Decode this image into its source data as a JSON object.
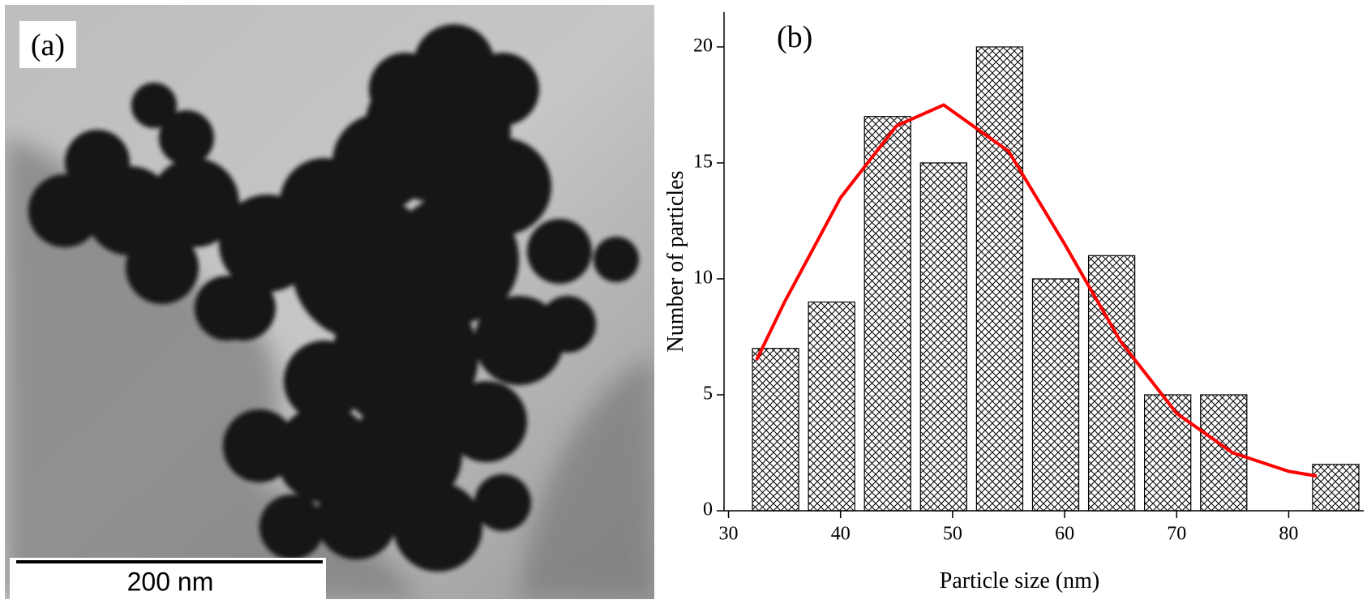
{
  "image_panel": {
    "label": "(a)",
    "scale_bar": "200 nm"
  },
  "chart_data": {
    "type": "histogram",
    "annotation": "(b)",
    "x_label": "Particle size (nm)",
    "y_label": "Number of particles",
    "bins": [
      31.7,
      36.7,
      41.7,
      46.7,
      51.7,
      56.7,
      61.7,
      66.7,
      71.7,
      76.7,
      81.7,
      86.7
    ],
    "counts": [
      7,
      9,
      17,
      15,
      20,
      10,
      11,
      5,
      5,
      0,
      2
    ],
    "fit": {
      "color": "#ff0000",
      "x": [
        32.5,
        35,
        40,
        45,
        49.2,
        55,
        60,
        65,
        70,
        75,
        80,
        82.5
      ],
      "y": [
        6.5,
        9,
        13.5,
        16.6,
        17.5,
        15.5,
        11.5,
        7.3,
        4.2,
        2.5,
        1.7,
        1.5
      ]
    },
    "xlim": [
      29.6,
      86.7
    ],
    "ylim": [
      0,
      21.5
    ],
    "xticks": [
      30,
      40,
      50,
      60,
      70,
      80
    ],
    "yticks": [
      0,
      5,
      10,
      15,
      20
    ]
  }
}
